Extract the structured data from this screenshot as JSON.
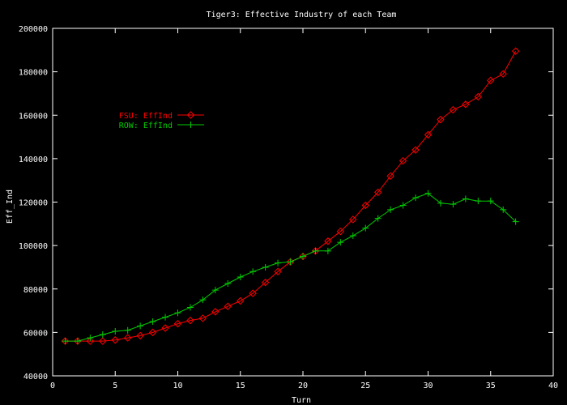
{
  "chart_data": {
    "type": "line",
    "title": "Tiger3: Effective Industry of each Team",
    "xlabel": "Turn",
    "ylabel": "Eff_Ind",
    "xlim": [
      0,
      40
    ],
    "ylim": [
      40000,
      200000
    ],
    "xticks": [
      0,
      5,
      10,
      15,
      20,
      25,
      30,
      35,
      40
    ],
    "yticks": [
      40000,
      60000,
      80000,
      100000,
      120000,
      140000,
      160000,
      180000,
      200000
    ],
    "grid": false,
    "legend_position": "top-left",
    "x": [
      1,
      2,
      3,
      4,
      5,
      6,
      7,
      8,
      9,
      10,
      11,
      12,
      13,
      14,
      15,
      16,
      17,
      18,
      19,
      20,
      21,
      22,
      23,
      24,
      25,
      26,
      27,
      28,
      29,
      30,
      31,
      32,
      33,
      34,
      35,
      36,
      37
    ],
    "series": [
      {
        "name": "FSU: EffInd",
        "color": "#ff0000",
        "marker": "diamond",
        "values": [
          56000,
          56000,
          56000,
          56000,
          56500,
          57500,
          58500,
          60000,
          62000,
          64000,
          65500,
          66500,
          69500,
          72000,
          74500,
          78000,
          83000,
          88000,
          92500,
          95000,
          97500,
          102000,
          106500,
          112000,
          118500,
          124500,
          132000,
          139000,
          144000,
          151000,
          158000,
          162500,
          165000,
          168500,
          176000,
          179000,
          189500
        ]
      },
      {
        "name": "ROW: EffInd",
        "color": "#00cc00",
        "marker": "plus",
        "values": [
          56000,
          56000,
          57500,
          59000,
          60500,
          61000,
          63000,
          65000,
          67000,
          69000,
          71500,
          75000,
          79500,
          82500,
          85500,
          88000,
          90000,
          92000,
          92500,
          95000,
          97500,
          97500,
          101500,
          104500,
          108000,
          112500,
          116500,
          118500,
          122000,
          124000,
          119500,
          119000,
          121500,
          120500,
          120500,
          116500,
          111000
        ]
      }
    ]
  }
}
